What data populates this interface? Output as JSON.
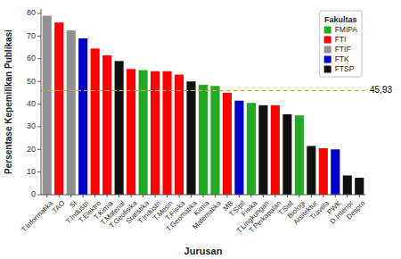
{
  "chart_data": {
    "type": "bar",
    "categories": [
      "T.Informatika",
      "TAO",
      "SI",
      "T.Industri",
      "T.Elektro",
      "T.Kimia",
      "T.Material",
      "T.Geofisika",
      "Statistika",
      "T.Industri",
      "T.Mesin",
      "T.Fisika",
      "T.Geomatika",
      "Kimia",
      "Matematika",
      "MB",
      "T.Sipil",
      "Fisika",
      "T.Lingkungan",
      "T.Perkapalan",
      "T.Sist",
      "Biologi",
      "Arsitektur",
      "Travela",
      "PWK",
      "D.Interior",
      "Despro"
    ],
    "values": [
      79,
      76,
      72.5,
      69,
      64.5,
      61.5,
      59,
      55.5,
      55,
      54.5,
      54.5,
      53,
      50,
      48.5,
      48,
      45,
      41.5,
      40.5,
      39.5,
      39.5,
      35.5,
      35,
      21.5,
      20.5,
      20,
      8.5,
      7.5
    ],
    "colors": [
      "#909090",
      "#ff0000",
      "#909090",
      "#0000cc",
      "#ff0000",
      "#ff0000",
      "#111111",
      "#ff0000",
      "#22aa22",
      "#ff0000",
      "#ff0000",
      "#ff0000",
      "#111111",
      "#22aa22",
      "#22aa22",
      "#ff0000",
      "#0000cc",
      "#22aa22",
      "#111111",
      "#ff0000",
      "#111111",
      "#22aa22",
      "#111111",
      "#ff0000",
      "#0000cc",
      "#111111",
      "#111111"
    ],
    "xlabel": "Jurusan",
    "ylabel": "Persentase Kepemilikan Publikasi",
    "ylim": [
      0,
      82
    ],
    "yticks": [
      0,
      10,
      20,
      30,
      40,
      50,
      60,
      70,
      80
    ],
    "grid": false,
    "legend": "upper right",
    "legend_title": "Fakultas",
    "legend_items": [
      {
        "name": "FMIPA",
        "color": "#22aa22"
      },
      {
        "name": "FTI",
        "color": "#ff0000"
      },
      {
        "name": "FTIF",
        "color": "#909090"
      },
      {
        "name": "FTK",
        "color": "#0000cc"
      },
      {
        "name": "FTSP",
        "color": "#111111"
      }
    ],
    "annotations": [
      {
        "type": "hline",
        "y": 45.93,
        "label": "45,93",
        "color": "#DAA520"
      }
    ]
  }
}
